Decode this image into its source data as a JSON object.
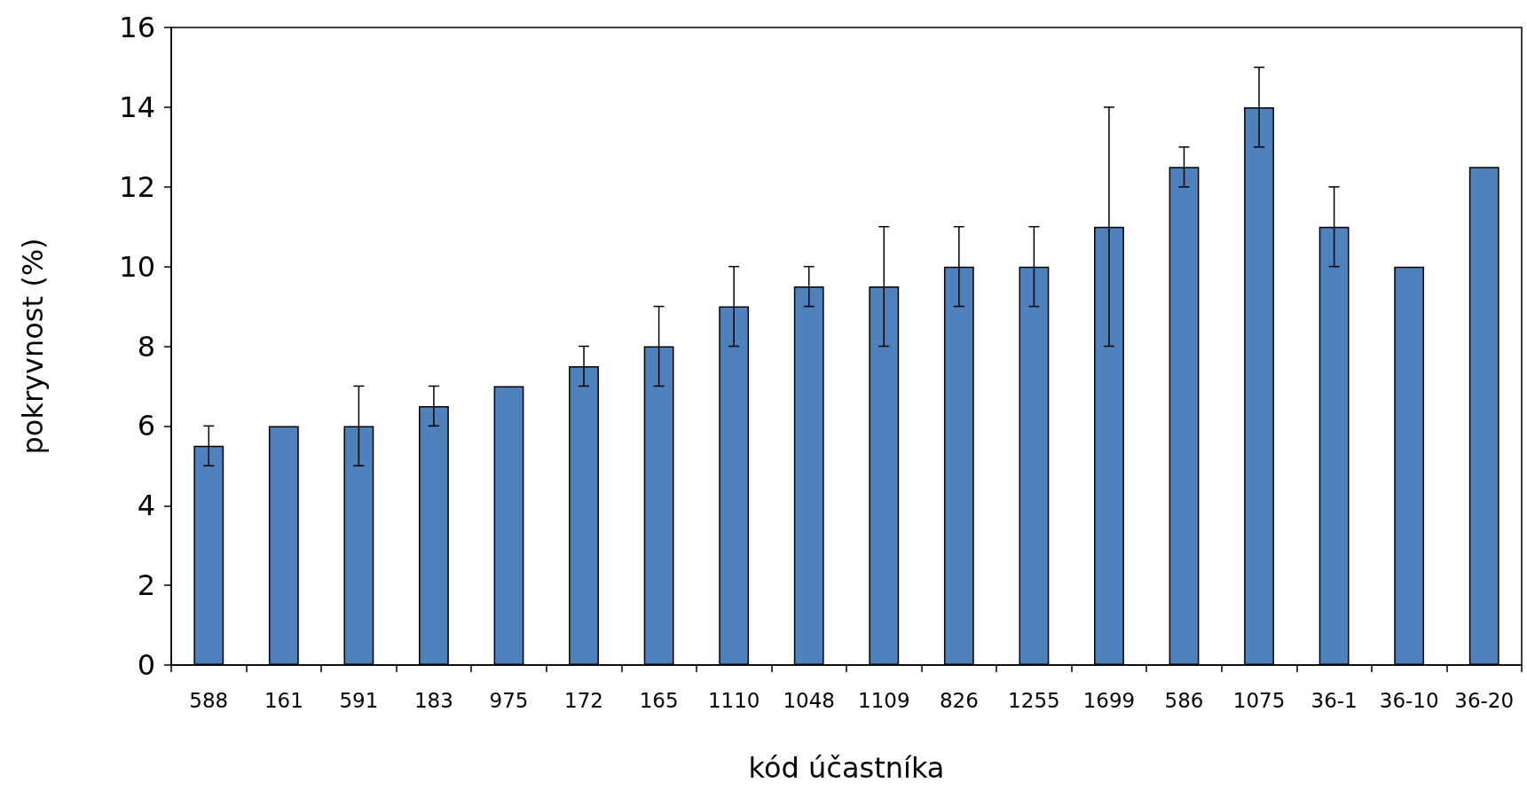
{
  "chart_data": {
    "type": "bar",
    "xlabel": "kód účastníka",
    "ylabel": "pokryvnost (%)",
    "categories": [
      "588",
      "161",
      "591",
      "183",
      "975",
      "172",
      "165",
      "1110",
      "1048",
      "1109",
      "826",
      "1255",
      "1699",
      "586",
      "1075",
      "36-1",
      "36-10",
      "36-20"
    ],
    "values": [
      5.5,
      6,
      6,
      6.5,
      7,
      7.5,
      8,
      9,
      9.5,
      9.5,
      10,
      10,
      11,
      12.5,
      14,
      11,
      10,
      12.5
    ],
    "errors": [
      0.5,
      null,
      1,
      0.5,
      null,
      0.5,
      1,
      1,
      0.5,
      1.5,
      1,
      1,
      3,
      0.5,
      1,
      1,
      null,
      null
    ],
    "color": "#4f81bd",
    "ylim": [
      0,
      16
    ],
    "yticks": [
      0,
      2,
      4,
      6,
      8,
      10,
      12,
      14,
      16
    ],
    "grid": false
  }
}
